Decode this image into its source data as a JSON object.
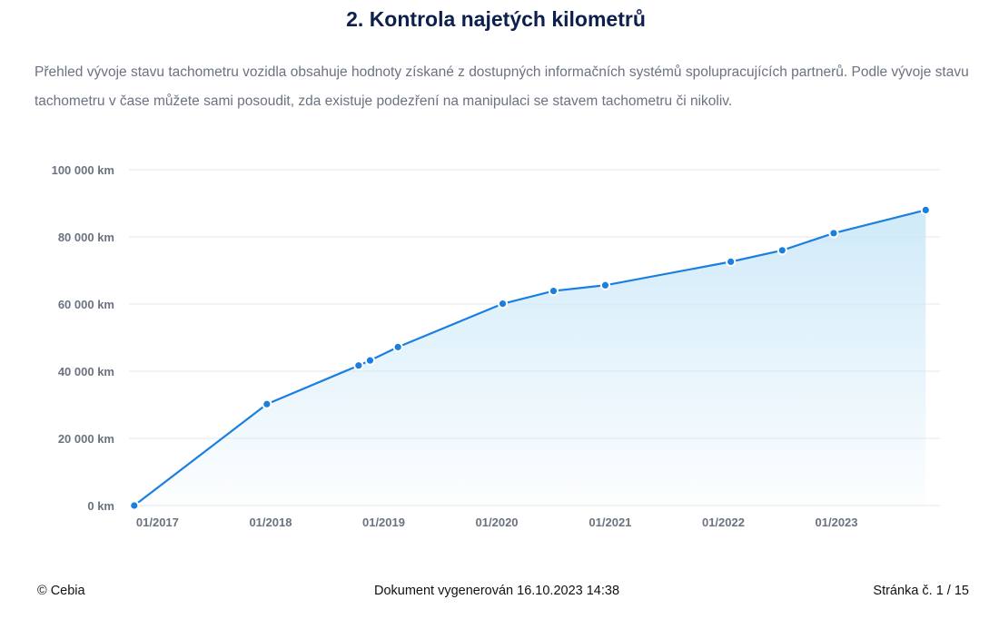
{
  "heading": "2. Kontrola najetých kilometrů",
  "intro": "Přehled vývoje stavu tachometru vozidla obsahuje hodnoty získané z dostupných informačních systémů spolupracujících partnerů. Podle vývoje stavu tachometru v čase můžete sami posoudit, zda existuje podezření na manipulaci se stavem tachometru či nikoliv.",
  "chart_data": {
    "type": "area",
    "title": "",
    "xlabel": "",
    "ylabel": "",
    "x_ticks": [
      "01/2017",
      "01/2018",
      "01/2019",
      "01/2020",
      "01/2021",
      "01/2022",
      "01/2023"
    ],
    "y_ticks": [
      "0 km",
      "20 000 km",
      "40 000 km",
      "60 000 km",
      "80 000 km",
      "100 000 km"
    ],
    "ylim": [
      0,
      100000
    ],
    "xlim": [
      "2016-10-01",
      "2023-12-01"
    ],
    "grid": true,
    "colors": {
      "line": "#1a7fe0",
      "fill_top": "#cde9f8",
      "grid": "#e5e7eb",
      "point": "#1a7fe0"
    },
    "series": [
      {
        "points": [
          {
            "x": "2016-10-18",
            "y": 0
          },
          {
            "x": "2017-12-20",
            "y": 30200
          },
          {
            "x": "2018-10-12",
            "y": 41700
          },
          {
            "x": "2018-11-18",
            "y": 43200
          },
          {
            "x": "2019-02-16",
            "y": 47200
          },
          {
            "x": "2020-01-20",
            "y": 60100
          },
          {
            "x": "2020-07-02",
            "y": 63900
          },
          {
            "x": "2020-12-16",
            "y": 65600
          },
          {
            "x": "2022-01-25",
            "y": 72600
          },
          {
            "x": "2022-07-10",
            "y": 76000
          },
          {
            "x": "2022-12-23",
            "y": 81100
          },
          {
            "x": "2023-10-16",
            "y": 88000
          }
        ]
      }
    ]
  },
  "footer": {
    "left": "© Cebia",
    "center": "Dokument vygenerován 16.10.2023 14:38",
    "right": "Stránka č. 1 / 15"
  }
}
